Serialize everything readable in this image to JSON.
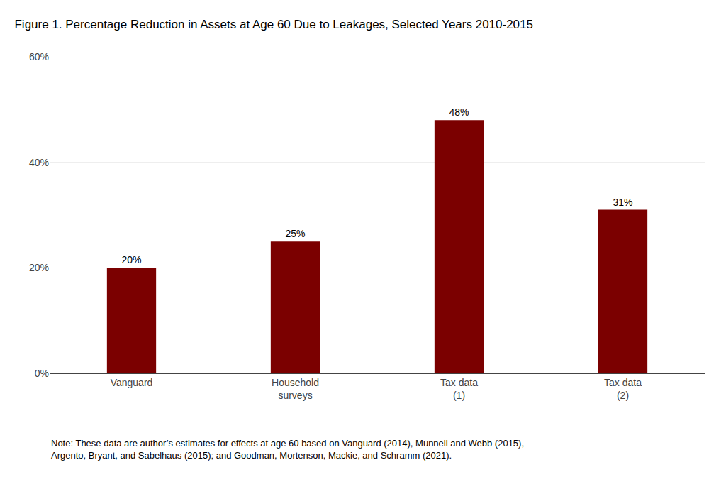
{
  "chart_data": {
    "type": "bar",
    "title": "Figure 1. Percentage Reduction in Assets at Age 60 Due to Leakages, Selected Years 2010-2015",
    "categories": [
      "Vanguard",
      "Household\nsurveys",
      "Tax data\n(1)",
      "Tax data\n(2)"
    ],
    "values": [
      20,
      25,
      48,
      31
    ],
    "value_labels": [
      "20%",
      "25%",
      "48%",
      "31%"
    ],
    "data_labels": true,
    "color": "#7B0000",
    "ylim": [
      0,
      60
    ],
    "yticks": [
      {
        "value": 0,
        "label": "0%"
      },
      {
        "value": 20,
        "label": "20%"
      },
      {
        "value": 40,
        "label": "40%"
      },
      {
        "value": 60,
        "label": "60%"
      }
    ],
    "grid": true,
    "annotations": [
      "Note: These data are author’s estimates for effects at age 60 based on Vanguard (2014), Munnell and Webb (2015),\nArgento, Bryant, and Sabelhaus (2015); and Goodman, Mortenson, Mackie, and Schramm (2021)."
    ]
  }
}
